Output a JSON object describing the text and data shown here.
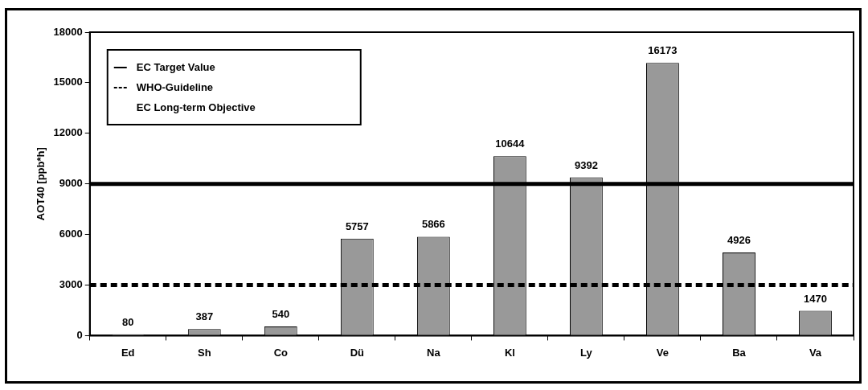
{
  "chart_data": {
    "type": "bar",
    "ylabel": "AOT40 [ppb*h]",
    "categories": [
      "Ed",
      "Sh",
      "Co",
      "Dü",
      "Na",
      "Kl",
      "Ly",
      "Ve",
      "Ba",
      "Va"
    ],
    "values": [
      80,
      387,
      540,
      5757,
      5866,
      10644,
      9392,
      16173,
      4926,
      1470
    ],
    "color": "#999999",
    "data_labels": true,
    "ylim": [
      0,
      18000
    ],
    "yticks": [
      0,
      3000,
      6000,
      9000,
      12000,
      15000,
      18000
    ],
    "grid": false,
    "ref_lines": [
      {
        "axis": "y",
        "value": 9000,
        "label": "EC Target Value",
        "color": "#000000",
        "line_style": "solid"
      },
      {
        "axis": "y",
        "value": 3000,
        "label": "WHO-Guideline",
        "color": "#000000",
        "line_style": "dashed"
      }
    ],
    "annotations": [
      "EC Long-term Objective"
    ],
    "legend": "top left"
  }
}
